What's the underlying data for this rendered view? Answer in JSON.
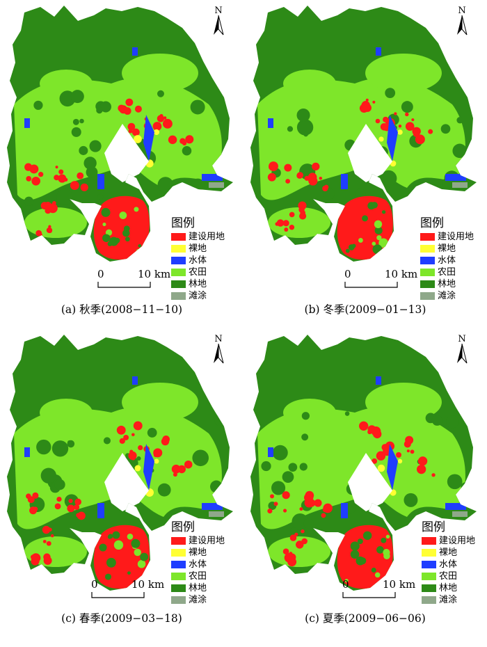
{
  "colors": {
    "built": "#ff1a1a",
    "bare": "#ffff33",
    "water": "#1f3dff",
    "farm": "#7ee62a",
    "forest": "#2d8a17",
    "tidal": "#8fa88a"
  },
  "north_label": "N",
  "legend": {
    "title": "图例",
    "items": [
      {
        "label": "建设用地",
        "color": "#ff1a1a"
      },
      {
        "label": "裸地",
        "color": "#ffff33"
      },
      {
        "label": "水体",
        "color": "#1f3dff"
      },
      {
        "label": "农田",
        "color": "#7ee62a"
      },
      {
        "label": "林地",
        "color": "#2d8a17"
      },
      {
        "label": "滩涂",
        "color": "#8fa88a"
      }
    ]
  },
  "scale": {
    "start": "0",
    "end": "10 km"
  },
  "panels": [
    {
      "caption": "(a) 秋季(2008−11−10)"
    },
    {
      "caption": "(b) 冬季(2009−01−13)"
    },
    {
      "caption": "(c) 春季(2009−03−18)"
    },
    {
      "caption": "(c) 夏季(2009−06−06)"
    }
  ]
}
